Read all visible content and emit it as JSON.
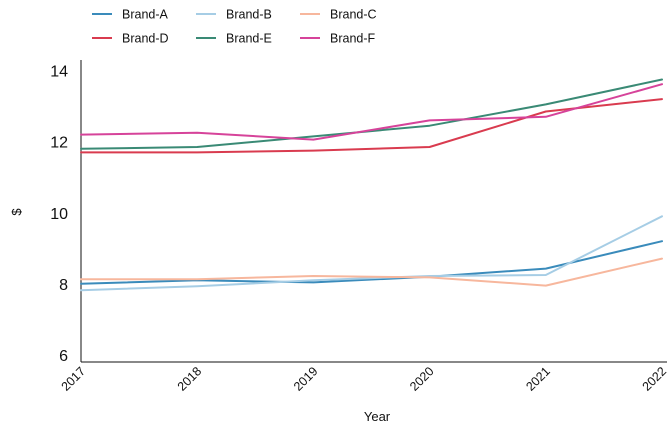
{
  "chart_data": {
    "type": "line",
    "title": "",
    "xlabel": "Year",
    "ylabel": "$",
    "x": [
      "2017",
      "2018",
      "2019",
      "2020",
      "2021",
      "2022"
    ],
    "yticks": [
      "6",
      "8",
      "10",
      "12",
      "14"
    ],
    "ylim": [
      5.8,
      14.3
    ],
    "grid": false,
    "legend_position": "top-left",
    "series": [
      {
        "name": "Brand-A",
        "color": "#3a8bbb",
        "values": [
          8.0,
          8.1,
          8.04,
          8.2,
          8.43,
          9.2
        ]
      },
      {
        "name": "Brand-B",
        "color": "#a6cde5",
        "values": [
          7.82,
          7.93,
          8.1,
          8.22,
          8.25,
          9.9
        ]
      },
      {
        "name": "Brand-C",
        "color": "#f7b79d",
        "values": [
          8.13,
          8.13,
          8.22,
          8.18,
          7.95,
          8.71
        ]
      },
      {
        "name": "Brand-D",
        "color": "#d93b4f",
        "values": [
          11.7,
          11.7,
          11.75,
          11.85,
          12.85,
          13.2
        ]
      },
      {
        "name": "Brand-E",
        "color": "#3a8a75",
        "values": [
          11.8,
          11.85,
          12.15,
          12.45,
          13.05,
          13.75
        ]
      },
      {
        "name": "Brand-F",
        "color": "#d6439a",
        "values": [
          12.2,
          12.25,
          12.06,
          12.6,
          12.7,
          13.62
        ]
      }
    ]
  }
}
